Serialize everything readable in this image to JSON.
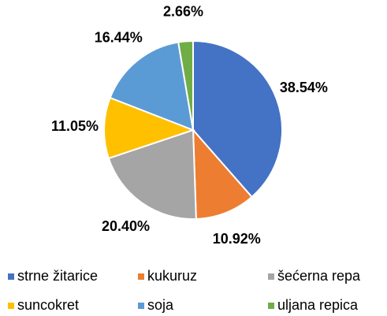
{
  "chart_data": {
    "type": "pie",
    "categories": [
      "strne žitarice",
      "kukuruz",
      "šećerna repa",
      "suncokret",
      "soja",
      "uljana repica"
    ],
    "values": [
      38.54,
      10.92,
      20.4,
      11.05,
      16.44,
      2.66
    ],
    "value_labels": [
      "38.54%",
      "10.92%",
      "20.40%",
      "11.05%",
      "16.44%",
      "2.66%"
    ],
    "colors": [
      "#4472c4",
      "#ed7d31",
      "#a5a5a5",
      "#ffc000",
      "#5b9bd5",
      "#70ad47"
    ],
    "legend": "bottom"
  }
}
